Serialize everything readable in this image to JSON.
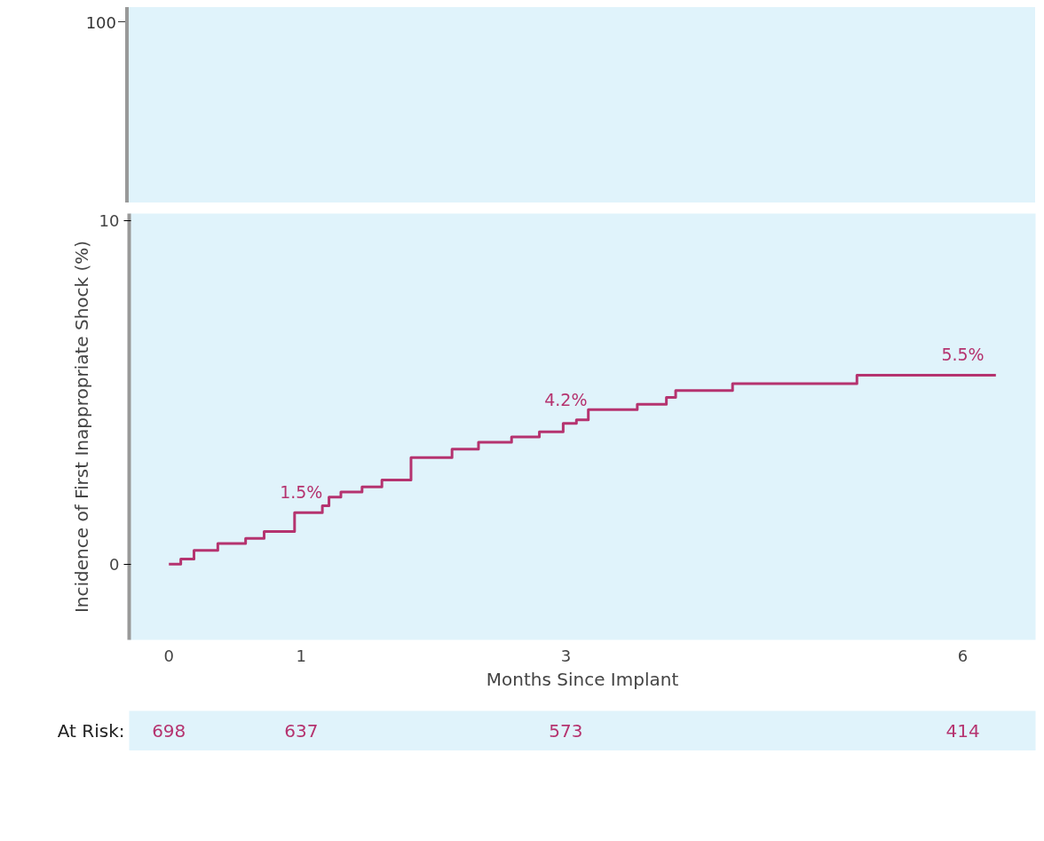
{
  "chart_data": {
    "type": "step",
    "xlabel": "Months Since Implant",
    "ylabel": "Incidence of First Inappropriate Shock (%)",
    "x": [
      0,
      0.09,
      0.19,
      0.37,
      0.58,
      0.72,
      0.95,
      1.16,
      1.21,
      1.3,
      1.46,
      1.61,
      1.83,
      2.14,
      2.34,
      2.59,
      2.8,
      2.98,
      3.08,
      3.17,
      3.54,
      3.76,
      3.83,
      4.26,
      5.2,
      6.25
    ],
    "series": [
      {
        "color": "#b5336f",
        "values": [
          0,
          0.15,
          0.4,
          0.6,
          0.75,
          0.95,
          1.5,
          1.7,
          1.95,
          2.1,
          2.25,
          2.45,
          3.1,
          3.35,
          3.55,
          3.7,
          3.85,
          4.1,
          4.2,
          4.5,
          4.65,
          4.85,
          5.05,
          5.25,
          5.5,
          5.5
        ]
      }
    ],
    "xlim": [
      -0.3,
      6.55
    ],
    "xticks": [
      0,
      1,
      3,
      6
    ],
    "ylim": [
      -2.2,
      10.2
    ],
    "yticks": [
      0,
      10
    ],
    "line_style": "solid",
    "annotations": [
      {
        "text": "1.5%",
        "x": 1,
        "y": 1.5
      },
      {
        "text": "4.2%",
        "x": 3,
        "y": 4.2
      },
      {
        "text": "5.5%",
        "x": 6,
        "y": 5.5
      },
      "100",
      "At Risk:",
      "698",
      "637",
      "573",
      "414"
    ]
  }
}
